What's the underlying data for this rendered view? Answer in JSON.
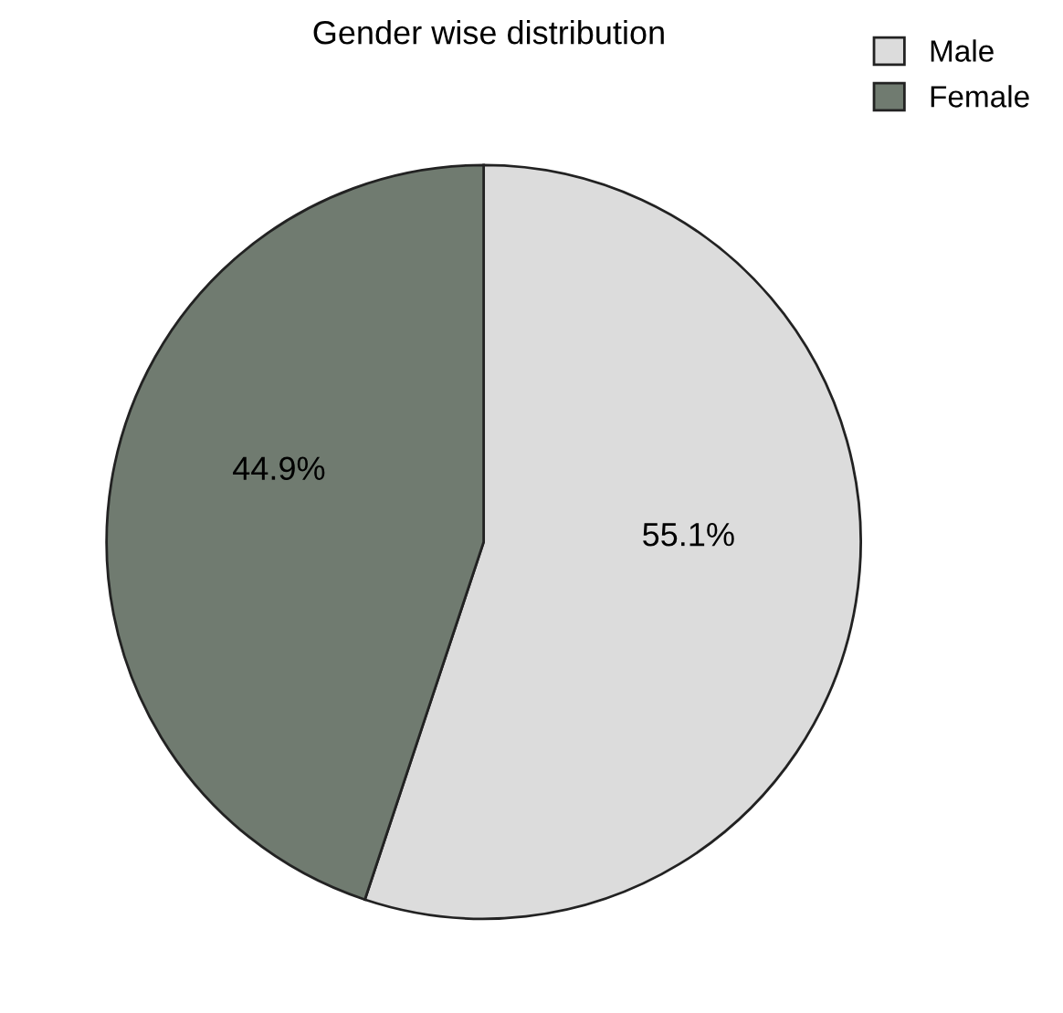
{
  "chart_data": {
    "type": "pie",
    "title": "Gender wise distribution",
    "categories": [
      "Male",
      "Female"
    ],
    "values": [
      55.1,
      44.9
    ],
    "colors": [
      "#dcdcdc",
      "#707b70"
    ],
    "value_labels": [
      "55.1%",
      "44.9%"
    ],
    "legend": "top right"
  }
}
